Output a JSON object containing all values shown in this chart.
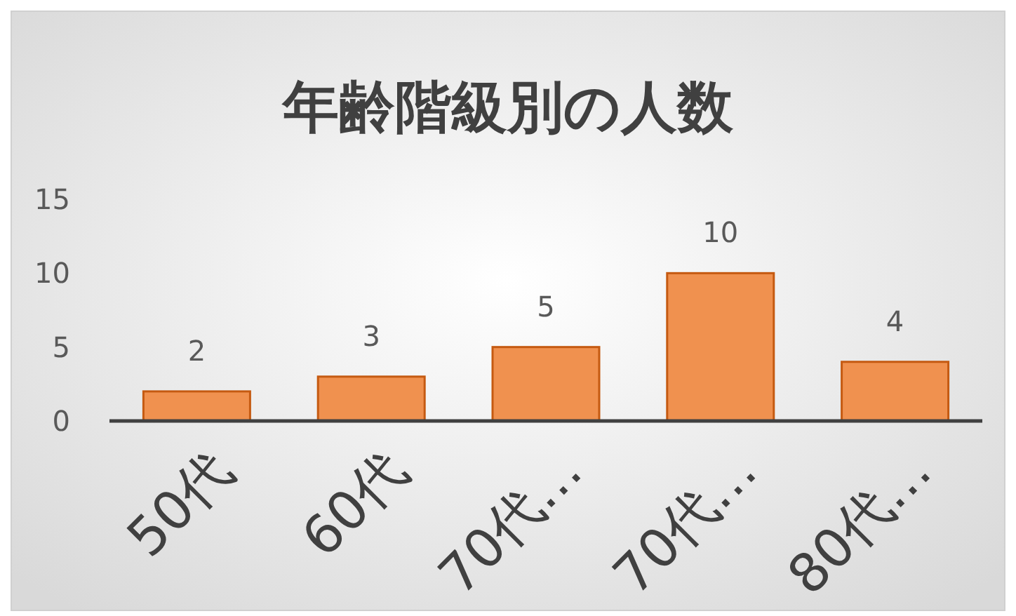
{
  "chart_data": {
    "type": "bar",
    "title": "年齢階級別の人数",
    "categories": [
      "50代",
      "60代",
      "70代…",
      "70代…",
      "80代…"
    ],
    "values": [
      2,
      3,
      5,
      10,
      4
    ],
    "color": "#f0914f",
    "ylim": [
      0,
      15
    ],
    "yticks": [
      0,
      5,
      10,
      15
    ],
    "data_labels": true,
    "grid": false
  }
}
